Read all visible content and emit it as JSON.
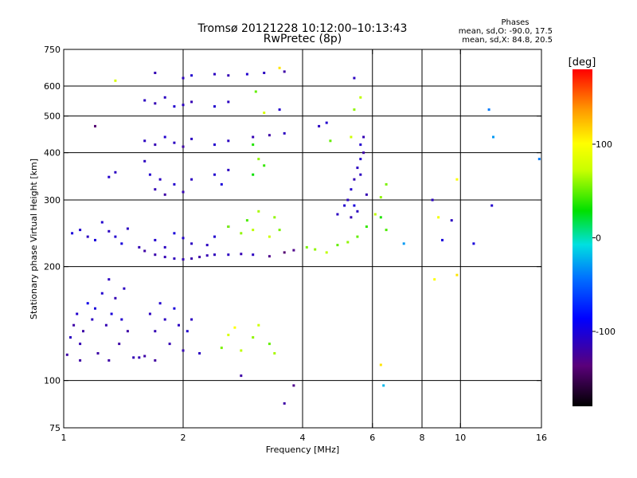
{
  "chart_data": {
    "type": "scatter",
    "title_line1": "Tromsø 20121228 10:12:00–10:13:43",
    "title_line2": "RwPretec (8p)",
    "stats": {
      "heading": "Phases",
      "line1": "mean, sd,O: -90.0, 17.5",
      "line2": "mean, sd,X:  84.8, 20.5"
    },
    "xlabel": "Frequency [MHz]",
    "ylabel": "Stationary phase Virtual Height [km]",
    "x_scale": "log",
    "y_scale": "log",
    "xlim": [
      1,
      16
    ],
    "ylim": [
      75,
      750
    ],
    "grid": true,
    "x_grid": [
      2,
      4,
      6
    ],
    "x_ticks": [
      {
        "v": 1,
        "label": "1"
      },
      {
        "v": 2,
        "label": "2"
      },
      {
        "v": 4,
        "label": "4"
      },
      {
        "v": 6,
        "label": "6"
      },
      {
        "v": 8,
        "label": "8"
      },
      {
        "v": 10,
        "label": "10"
      },
      {
        "v": 16,
        "label": "16"
      }
    ],
    "y_ticks": [
      {
        "v": 75,
        "label": "75"
      },
      {
        "v": 100,
        "label": "100"
      },
      {
        "v": 200,
        "label": "200"
      },
      {
        "v": 300,
        "label": "300"
      },
      {
        "v": 400,
        "label": "400"
      },
      {
        "v": 500,
        "label": "500"
      },
      {
        "v": 600,
        "label": "600"
      },
      {
        "v": 750,
        "label": "750"
      }
    ],
    "colorbar": {
      "label": "[deg]",
      "range": [
        -180,
        180
      ],
      "ticks": [
        {
          "v": 100,
          "label": "100"
        },
        {
          "v": 0,
          "label": "0"
        },
        {
          "v": -100,
          "label": "-100"
        }
      ]
    },
    "series": [
      {
        "points": [
          [
            1.02,
            117,
            -120
          ],
          [
            1.04,
            130,
            -110
          ],
          [
            1.06,
            140,
            -120
          ],
          [
            1.08,
            150,
            -105
          ],
          [
            1.1,
            125,
            -115
          ],
          [
            1.12,
            135,
            -120
          ],
          [
            1.15,
            160,
            -95
          ],
          [
            1.18,
            145,
            -110
          ],
          [
            1.2,
            155,
            -100
          ],
          [
            1.22,
            118,
            -120
          ],
          [
            1.25,
            170,
            -105
          ],
          [
            1.28,
            140,
            -115
          ],
          [
            1.3,
            185,
            -110
          ],
          [
            1.32,
            150,
            -100
          ],
          [
            1.35,
            165,
            -115
          ],
          [
            1.38,
            125,
            -120
          ],
          [
            1.4,
            145,
            -105
          ],
          [
            1.42,
            175,
            -110
          ],
          [
            1.45,
            135,
            -120
          ],
          [
            1.5,
            115,
            -115
          ],
          [
            1.55,
            115,
            -115
          ],
          [
            1.6,
            116,
            -120
          ],
          [
            1.65,
            150,
            -110
          ],
          [
            1.7,
            135,
            -115
          ],
          [
            1.75,
            160,
            -105
          ],
          [
            1.8,
            145,
            -110
          ],
          [
            1.85,
            125,
            -115
          ],
          [
            1.9,
            155,
            -100
          ],
          [
            1.95,
            140,
            -110
          ],
          [
            2.0,
            120,
            -115
          ],
          [
            2.05,
            135,
            -105
          ],
          [
            2.1,
            145,
            -110
          ],
          [
            1.1,
            113,
            -120
          ],
          [
            1.3,
            113,
            -120
          ],
          [
            1.7,
            113,
            -122
          ],
          [
            2.2,
            118,
            -110
          ]
        ]
      },
      {
        "points": [
          [
            1.05,
            245,
            -100
          ],
          [
            1.1,
            250,
            -105
          ],
          [
            1.15,
            240,
            -110
          ],
          [
            1.2,
            235,
            -100
          ],
          [
            1.25,
            262,
            -105
          ],
          [
            1.3,
            248,
            -110
          ],
          [
            1.35,
            240,
            -105
          ],
          [
            1.4,
            230,
            -100
          ],
          [
            1.45,
            252,
            -110
          ],
          [
            1.55,
            225,
            -115
          ],
          [
            1.6,
            220,
            -120
          ],
          [
            1.7,
            215,
            -118
          ],
          [
            1.8,
            212,
            -115
          ],
          [
            1.9,
            210,
            -112
          ],
          [
            2.0,
            209,
            -115
          ],
          [
            2.1,
            210,
            -118
          ],
          [
            2.2,
            212,
            -120
          ],
          [
            2.3,
            214,
            -115
          ],
          [
            2.4,
            215,
            -112
          ],
          [
            2.6,
            215,
            -110
          ],
          [
            2.8,
            216,
            -115
          ],
          [
            3.0,
            215,
            -110
          ],
          [
            3.3,
            213,
            -130
          ],
          [
            3.6,
            218,
            -140
          ],
          [
            3.8,
            221,
            -130
          ],
          [
            1.7,
            235,
            -105
          ],
          [
            1.9,
            245,
            -100
          ],
          [
            2.1,
            230,
            -110
          ],
          [
            2.4,
            240,
            -105
          ],
          [
            2.6,
            255,
            -100
          ],
          [
            1.8,
            225,
            -110
          ],
          [
            2.0,
            238,
            -105
          ],
          [
            2.3,
            228,
            -110
          ]
        ]
      },
      {
        "points": [
          [
            1.6,
            380,
            -110
          ],
          [
            1.65,
            350,
            -105
          ],
          [
            1.7,
            320,
            -115
          ],
          [
            1.75,
            340,
            -110
          ],
          [
            1.8,
            310,
            -120
          ],
          [
            1.9,
            330,
            -105
          ],
          [
            2.0,
            315,
            -115
          ],
          [
            2.1,
            340,
            -110
          ],
          [
            1.3,
            345,
            -105
          ],
          [
            1.35,
            355,
            -110
          ],
          [
            2.4,
            350,
            -105
          ],
          [
            2.5,
            330,
            -100
          ],
          [
            2.6,
            360,
            -110
          ],
          [
            1.6,
            430,
            -110
          ],
          [
            1.7,
            420,
            -115
          ],
          [
            1.8,
            440,
            -105
          ],
          [
            1.9,
            425,
            -110
          ],
          [
            2.0,
            415,
            -120
          ],
          [
            2.1,
            435,
            -110
          ],
          [
            2.4,
            420,
            -105
          ],
          [
            2.6,
            430,
            -110
          ],
          [
            1.6,
            550,
            -110
          ],
          [
            1.7,
            540,
            -115
          ],
          [
            1.8,
            560,
            -110
          ],
          [
            1.9,
            530,
            -105
          ],
          [
            2.0,
            535,
            -110
          ],
          [
            2.1,
            545,
            -115
          ],
          [
            2.4,
            530,
            -105
          ],
          [
            2.6,
            545,
            -110
          ],
          [
            1.7,
            650,
            -115
          ],
          [
            2.0,
            630,
            -110
          ],
          [
            2.1,
            640,
            -105
          ],
          [
            2.4,
            645,
            -110
          ],
          [
            2.6,
            640,
            -115
          ],
          [
            2.9,
            645,
            -105
          ],
          [
            3.2,
            650,
            -110
          ],
          [
            3.6,
            655,
            -120
          ],
          [
            3.0,
            440,
            -115
          ],
          [
            3.3,
            445,
            -120
          ],
          [
            3.6,
            450,
            -110
          ],
          [
            3.5,
            520,
            -105
          ],
          [
            4.4,
            470,
            -110
          ],
          [
            4.6,
            480,
            -105
          ],
          [
            1.2,
            470,
            -140
          ],
          [
            1.35,
            620,
            80
          ]
        ]
      },
      {
        "points": [
          [
            2.6,
            255,
            55
          ],
          [
            2.8,
            245,
            60
          ],
          [
            2.9,
            265,
            45
          ],
          [
            3.0,
            250,
            70
          ],
          [
            3.1,
            280,
            65
          ],
          [
            3.3,
            240,
            75
          ],
          [
            3.4,
            270,
            60
          ],
          [
            3.5,
            250,
            55
          ],
          [
            3.0,
            350,
            30
          ],
          [
            3.2,
            370,
            40
          ],
          [
            3.1,
            385,
            60
          ],
          [
            3.0,
            420,
            35
          ],
          [
            3.2,
            510,
            80
          ],
          [
            3.05,
            580,
            50
          ],
          [
            4.1,
            225,
            55
          ],
          [
            4.3,
            222,
            60
          ],
          [
            4.6,
            218,
            70
          ],
          [
            4.9,
            228,
            50
          ],
          [
            5.2,
            232,
            60
          ],
          [
            5.5,
            240,
            50
          ],
          [
            5.8,
            255,
            40
          ],
          [
            6.1,
            275,
            70
          ],
          [
            6.3,
            305,
            60
          ],
          [
            6.5,
            330,
            55
          ],
          [
            6.3,
            270,
            35
          ],
          [
            6.5,
            250,
            45
          ],
          [
            5.4,
            520,
            60
          ],
          [
            5.3,
            440,
            75
          ],
          [
            5.6,
            560,
            70
          ],
          [
            4.7,
            430,
            50
          ],
          [
            2.5,
            122,
            55
          ],
          [
            2.6,
            132,
            80
          ],
          [
            2.8,
            120,
            70
          ],
          [
            3.0,
            130,
            60
          ],
          [
            3.1,
            140,
            75
          ],
          [
            3.3,
            125,
            50
          ],
          [
            3.4,
            118,
            65
          ],
          [
            2.7,
            138,
            100
          ],
          [
            6.3,
            110,
            110
          ],
          [
            3.5,
            670,
            110
          ]
        ]
      },
      {
        "points": [
          [
            5.2,
            300,
            -110
          ],
          [
            5.3,
            320,
            -105
          ],
          [
            5.4,
            340,
            -115
          ],
          [
            5.5,
            365,
            -110
          ],
          [
            5.6,
            385,
            -105
          ],
          [
            5.7,
            400,
            -120
          ],
          [
            5.5,
            280,
            -110
          ],
          [
            5.3,
            270,
            -115
          ],
          [
            5.1,
            290,
            -105
          ],
          [
            4.9,
            275,
            -110
          ],
          [
            5.7,
            440,
            -115
          ],
          [
            5.6,
            350,
            -110
          ],
          [
            5.4,
            290,
            -100
          ],
          [
            5.8,
            310,
            -115
          ],
          [
            5.6,
            420,
            -105
          ],
          [
            5.4,
            630,
            -110
          ]
        ]
      },
      {
        "points": [
          [
            8.5,
            300,
            -110
          ],
          [
            8.8,
            270,
            95
          ],
          [
            9.0,
            235,
            -100
          ],
          [
            9.5,
            265,
            -110
          ],
          [
            9.8,
            340,
            100
          ],
          [
            9.8,
            190,
            110
          ],
          [
            8.6,
            185,
            100
          ],
          [
            10.8,
            230,
            -100
          ],
          [
            12.0,
            290,
            -105
          ],
          [
            12.1,
            440,
            -30
          ],
          [
            11.8,
            520,
            -40
          ],
          [
            15.8,
            385,
            -40
          ],
          [
            7.2,
            230,
            -30
          ],
          [
            6.4,
            97,
            -20
          ],
          [
            2.8,
            103,
            -120
          ],
          [
            3.8,
            97,
            -130
          ],
          [
            3.6,
            87,
            -120
          ]
        ]
      }
    ]
  }
}
